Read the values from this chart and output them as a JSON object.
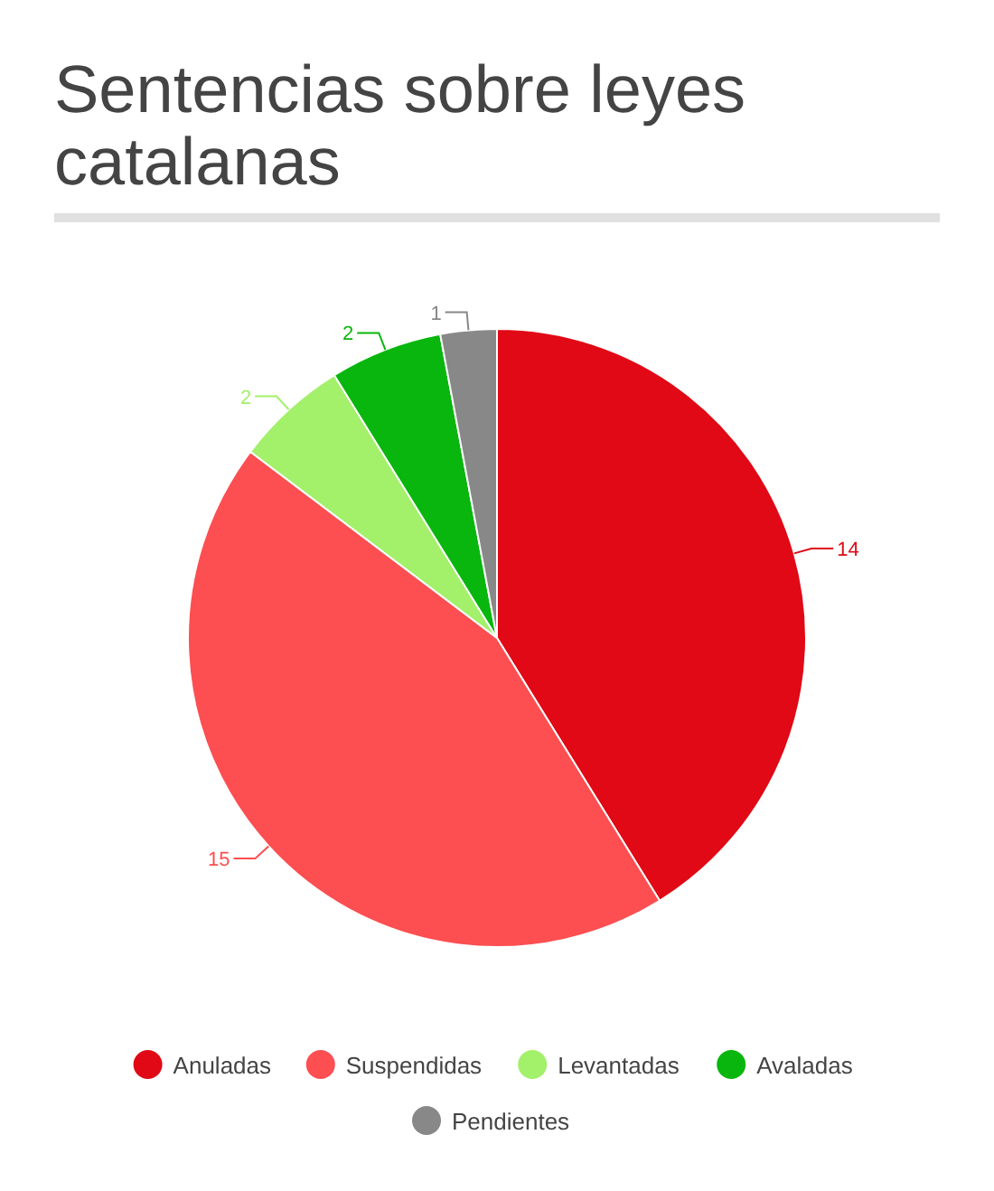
{
  "chart_data": {
    "type": "pie",
    "title": "Sentencias sobre leyes catalanas",
    "categories": [
      "Anuladas",
      "Suspendidas",
      "Levantadas",
      "Avaladas",
      "Pendientes"
    ],
    "values": [
      14,
      15,
      2,
      2,
      1
    ],
    "colors": [
      "#e00915",
      "#fd4e51",
      "#a3f06b",
      "#08b60d",
      "#888888"
    ],
    "data_labels": true,
    "legend": "bottom"
  }
}
